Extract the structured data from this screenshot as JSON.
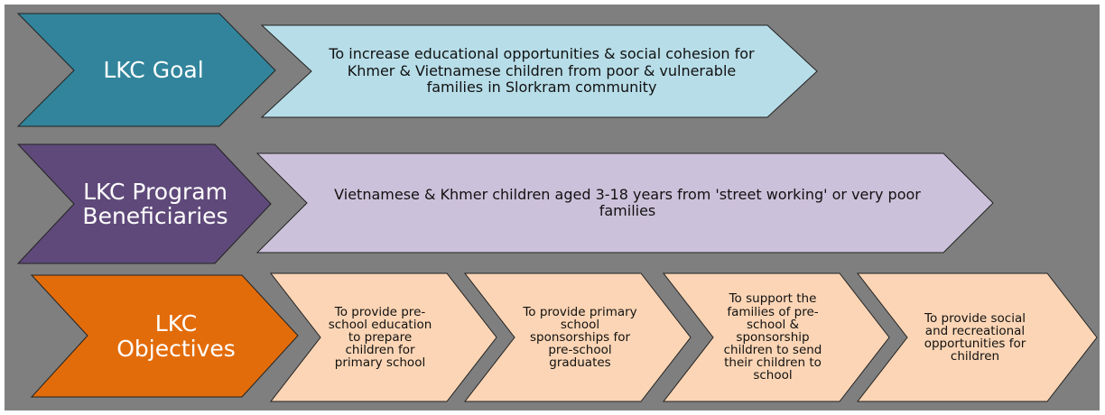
{
  "rows": [
    {
      "label": "LKC Goal",
      "items": [
        "To increase educational opportunities & social cohesion for Khmer & Vietnamese children from poor & vulnerable families in Slorkram community"
      ]
    },
    {
      "label": "LKC Program Beneficiaries",
      "items": [
        "Vietnamese & Khmer children aged 3-18 years from 'street working' or very poor families"
      ]
    },
    {
      "label": "LKC Objectives",
      "items": [
        "To provide pre-school education to prepare children for primary school",
        "To provide primary school sponsorships for pre-school graduates",
        "To support the families of pre-school & sponsorship children to send their children to school",
        "To provide social and recreational opportunities for children"
      ]
    }
  ]
}
